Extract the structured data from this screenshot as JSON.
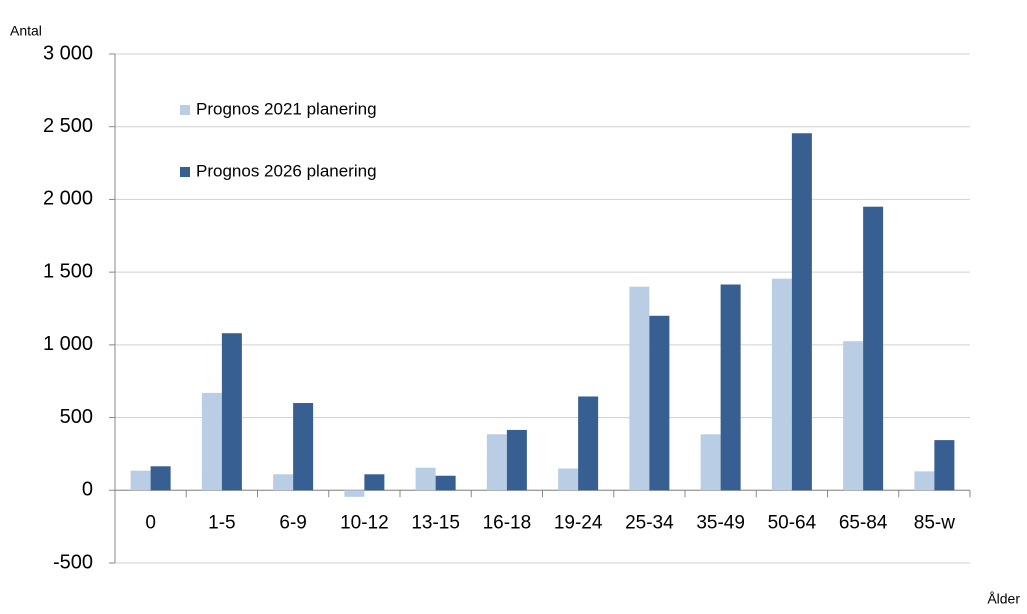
{
  "chart_data": {
    "type": "bar",
    "y_label": "Antal",
    "x_label": "Ålder",
    "categories": [
      "0",
      "1-5",
      "6-9",
      "10-12",
      "13-15",
      "16-18",
      "19-24",
      "25-34",
      "35-49",
      "50-64",
      "65-84",
      "85-w"
    ],
    "series": [
      {
        "name": "Prognos 2021 planering",
        "color": "#b9cde5",
        "values": [
          135,
          670,
          110,
          -45,
          155,
          385,
          150,
          1400,
          385,
          1455,
          1025,
          130
        ]
      },
      {
        "name": "Prognos 2026 planering",
        "color": "#375f92",
        "values": [
          165,
          1080,
          600,
          110,
          100,
          415,
          645,
          1200,
          1415,
          2455,
          1950,
          345
        ]
      }
    ],
    "ylim": [
      -500,
      3000
    ],
    "yticks": [
      -500,
      0,
      500,
      {
        "value": 1000,
        "label": "1 000"
      },
      {
        "value": 1500,
        "label": "1 500"
      },
      {
        "value": 2000,
        "label": "2 000"
      },
      {
        "value": 2500,
        "label": "2 500"
      },
      {
        "value": 3000,
        "label": "3 000"
      }
    ],
    "grid": true,
    "legend": "top-left"
  }
}
